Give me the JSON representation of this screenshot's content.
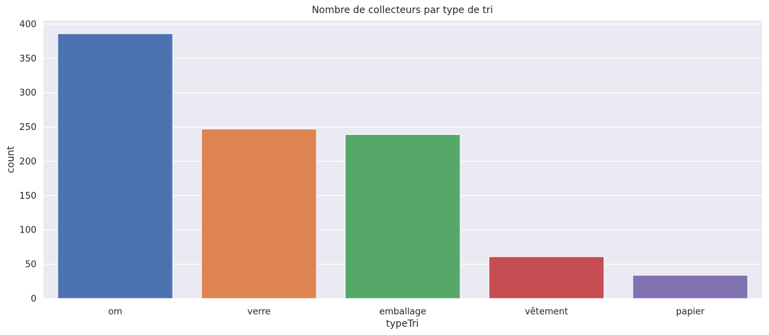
{
  "chart_data": {
    "type": "bar",
    "title": "Nombre de collecteurs par type de tri",
    "xlabel": "typeTri",
    "ylabel": "count",
    "categories": [
      "om",
      "verre",
      "emballage",
      "vêtement",
      "papier"
    ],
    "values": [
      386,
      247,
      239,
      61,
      34
    ],
    "colors": [
      "#4c72b0",
      "#dd8452",
      "#55a868",
      "#c44e52",
      "#8172b3"
    ],
    "ylim": [
      0,
      405
    ],
    "yticks": [
      0,
      50,
      100,
      150,
      200,
      250,
      300,
      350,
      400
    ],
    "grid": true,
    "background": "#eaeaf2",
    "grid_color": "#ffffff"
  }
}
